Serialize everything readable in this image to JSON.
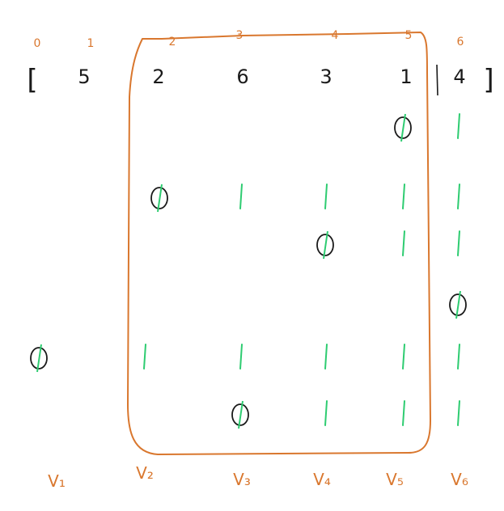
{
  "colors": {
    "orange": "#d9772e",
    "black": "#1a1a1a",
    "green": "#2ecc71"
  },
  "indices": [
    "0",
    "1",
    "2",
    "3",
    "4",
    "5",
    "6"
  ],
  "bracket_open": "[",
  "bracket_close": "]",
  "array_values": [
    "5",
    "2",
    "6",
    "3",
    "1",
    "4"
  ],
  "column_labels": [
    "V₁",
    "V₂",
    "V₃",
    "V₄",
    "V₅",
    "V₆"
  ],
  "grid": {
    "rows": [
      [
        "",
        "",
        "",
        "",
        "∅",
        "1"
      ],
      [
        "",
        "∅",
        "1",
        "1",
        "1",
        "1"
      ],
      [
        "",
        "",
        "",
        "∅",
        "1",
        "1"
      ],
      [
        "",
        "",
        "",
        "",
        "",
        "∅"
      ],
      [
        "∅",
        "1",
        "1",
        "1",
        "1",
        "1"
      ],
      [
        "",
        "",
        "∅",
        "1",
        "1",
        "1"
      ]
    ]
  }
}
